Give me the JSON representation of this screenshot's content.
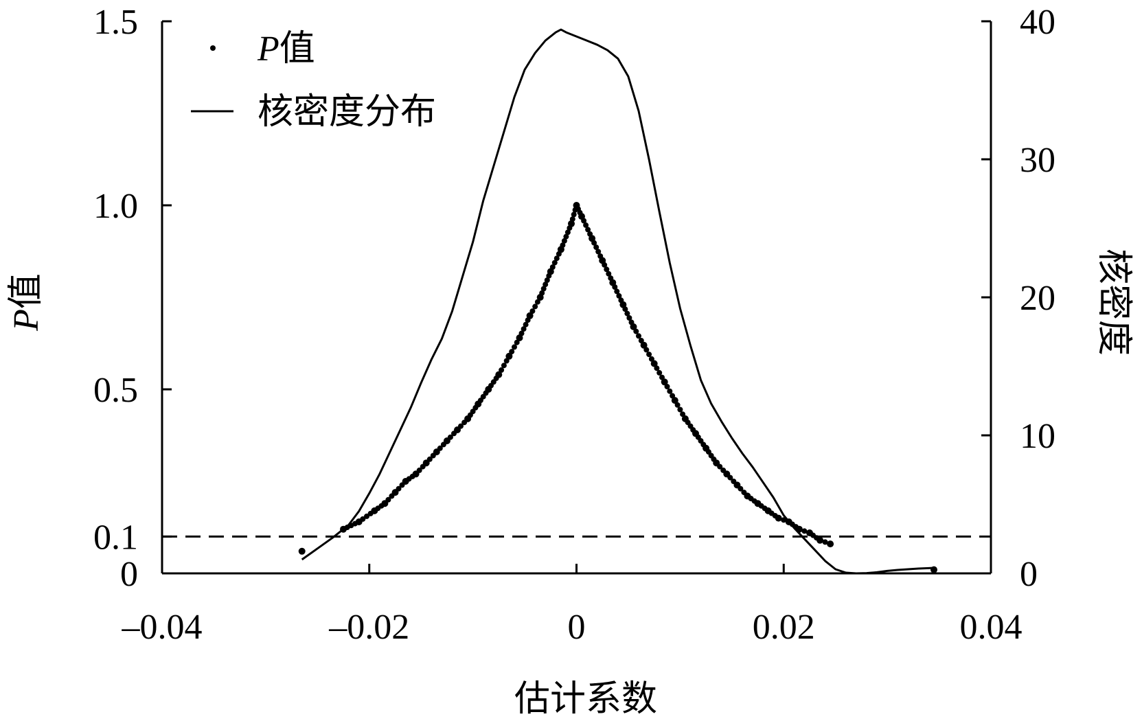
{
  "chart_data": {
    "type": "line",
    "xlabel": "估计系数",
    "ylabel_left": "P值",
    "ylabel_right": "核密度",
    "xlim": [
      -0.04,
      0.04
    ],
    "ylim_left": [
      0,
      1.5
    ],
    "ylim_right": [
      0,
      40
    ],
    "x_ticks": [
      -0.04,
      -0.02,
      0,
      0.02,
      0.04
    ],
    "x_tick_labels": [
      "–0.04",
      "–0.02",
      "0",
      "0.02",
      "0.04"
    ],
    "y_left_ticks": [
      0,
      0.1,
      0.5,
      1.0,
      1.5
    ],
    "y_left_tick_labels": [
      "0",
      "0.1",
      "0.5",
      "1.0",
      "1.5"
    ],
    "y_right_ticks": [
      0,
      10,
      20,
      30,
      40
    ],
    "y_right_tick_labels": [
      "0",
      "10",
      "20",
      "30",
      "40"
    ],
    "grid": false,
    "legend_position": "top-left",
    "legend": [
      {
        "symbol": "dot",
        "text_italic": "P",
        "text": "值"
      },
      {
        "symbol": "line",
        "text_italic": "",
        "text": "核密度分布"
      }
    ],
    "reference_line": {
      "axis": "left",
      "y": 0.1,
      "style": "dashed"
    },
    "series": [
      {
        "name": "P值",
        "axis": "left",
        "style": "dots",
        "x": [
          -0.0265,
          -0.0225,
          -0.021,
          -0.0195,
          -0.0185,
          -0.0175,
          -0.0165,
          -0.0155,
          -0.0145,
          -0.0135,
          -0.0125,
          -0.0115,
          -0.0105,
          -0.0095,
          -0.0085,
          -0.0075,
          -0.0065,
          -0.0055,
          -0.0045,
          -0.0035,
          -0.0025,
          -0.0015,
          -0.0005,
          0.0,
          0.0005,
          0.0015,
          0.0025,
          0.0035,
          0.0045,
          0.0055,
          0.0065,
          0.0075,
          0.0085,
          0.0095,
          0.0105,
          0.0115,
          0.0125,
          0.0135,
          0.0145,
          0.0155,
          0.0165,
          0.0175,
          0.0185,
          0.0195,
          0.0205,
          0.0215,
          0.0225,
          0.0235,
          0.0245,
          0.0345
        ],
        "y": [
          0.06,
          0.12,
          0.14,
          0.17,
          0.19,
          0.22,
          0.25,
          0.27,
          0.3,
          0.33,
          0.36,
          0.39,
          0.42,
          0.46,
          0.5,
          0.54,
          0.59,
          0.64,
          0.7,
          0.75,
          0.82,
          0.88,
          0.95,
          1.0,
          0.97,
          0.91,
          0.85,
          0.79,
          0.73,
          0.67,
          0.62,
          0.57,
          0.52,
          0.47,
          0.42,
          0.38,
          0.34,
          0.3,
          0.27,
          0.24,
          0.21,
          0.19,
          0.17,
          0.15,
          0.14,
          0.12,
          0.11,
          0.09,
          0.08,
          0.01
        ]
      },
      {
        "name": "核密度分布",
        "axis": "right",
        "style": "line",
        "x": [
          -0.0265,
          -0.025,
          -0.0235,
          -0.022,
          -0.021,
          -0.02,
          -0.019,
          -0.018,
          -0.017,
          -0.016,
          -0.015,
          -0.014,
          -0.013,
          -0.012,
          -0.011,
          -0.01,
          -0.009,
          -0.008,
          -0.007,
          -0.006,
          -0.005,
          -0.004,
          -0.003,
          -0.002,
          -0.0015,
          -0.001,
          0.0,
          0.001,
          0.002,
          0.003,
          0.004,
          0.005,
          0.006,
          0.007,
          0.008,
          0.009,
          0.01,
          0.011,
          0.012,
          0.013,
          0.014,
          0.015,
          0.016,
          0.017,
          0.018,
          0.019,
          0.02,
          0.021,
          0.022,
          0.023,
          0.024,
          0.025,
          0.026,
          0.027,
          0.028,
          0.029,
          0.03,
          0.031,
          0.032,
          0.033,
          0.034,
          0.0345
        ],
        "y": [
          1.0,
          1.8,
          2.6,
          3.5,
          4.5,
          5.8,
          7.2,
          8.8,
          10.4,
          12.0,
          13.8,
          15.5,
          17.0,
          19.0,
          21.5,
          24.0,
          27.0,
          29.5,
          32.0,
          34.5,
          36.5,
          37.7,
          38.6,
          39.2,
          39.4,
          39.2,
          38.9,
          38.6,
          38.3,
          37.9,
          37.3,
          36.0,
          33.5,
          30.0,
          26.2,
          22.5,
          19.2,
          16.5,
          14.0,
          12.3,
          11.0,
          9.8,
          8.7,
          7.7,
          6.6,
          5.5,
          4.2,
          3.3,
          2.5,
          1.7,
          0.9,
          0.3,
          0.05,
          0.0,
          0.02,
          0.08,
          0.18,
          0.25,
          0.3,
          0.35,
          0.38,
          0.4
        ]
      }
    ]
  }
}
